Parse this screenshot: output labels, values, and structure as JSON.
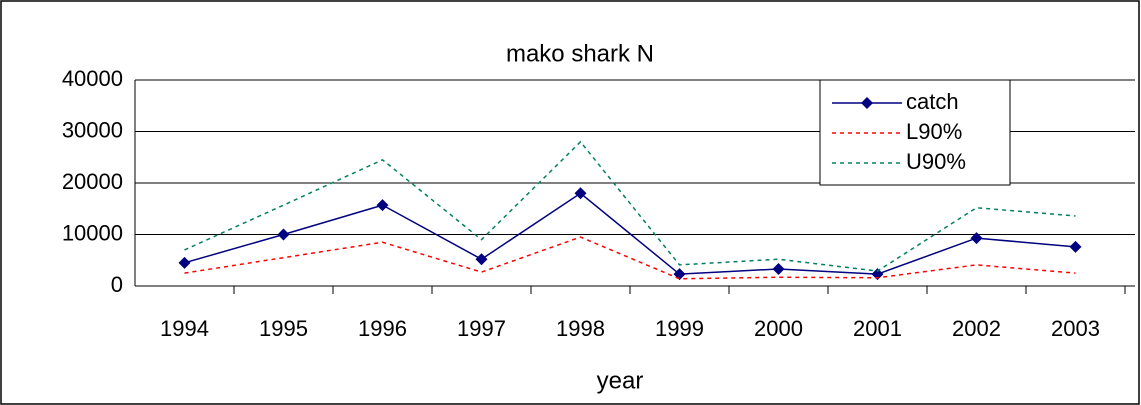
{
  "chart_data": {
    "type": "line",
    "title": "mako shark N",
    "x_label": "year",
    "categories": [
      "1994",
      "1995",
      "1996",
      "1997",
      "1998",
      "1999",
      "2000",
      "2001",
      "2002",
      "2003"
    ],
    "series": [
      {
        "name": "catch",
        "color": "#000080",
        "style": "solid",
        "marker": "diamond",
        "values": [
          4500,
          10000,
          15700,
          5200,
          18000,
          2300,
          3300,
          2300,
          9300,
          7600
        ]
      },
      {
        "name": "L90%",
        "color": "#ff0000",
        "style": "dashed",
        "values": [
          2500,
          5500,
          8500,
          2700,
          9500,
          1400,
          1700,
          1600,
          4100,
          2500
        ]
      },
      {
        "name": "U90%",
        "color": "#008060",
        "style": "dashed",
        "values": [
          7000,
          15700,
          24500,
          9000,
          28000,
          4100,
          5200,
          2900,
          15200,
          13600
        ]
      }
    ],
    "ylim": [
      0,
      40000
    ],
    "yticks": [
      0,
      10000,
      20000,
      30000,
      40000
    ],
    "grid": true,
    "legend": "top-right"
  }
}
